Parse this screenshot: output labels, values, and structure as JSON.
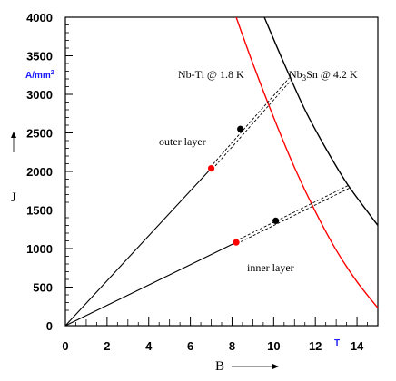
{
  "chart_data": {
    "type": "line",
    "xlabel": "B",
    "ylabel": "J",
    "x_unit": "T",
    "y_unit": "A/mm",
    "y_unit_exp": "2",
    "xlim": [
      0,
      15
    ],
    "ylim": [
      0,
      4000
    ],
    "x_ticks": [
      0,
      2,
      4,
      6,
      8,
      10,
      12,
      14
    ],
    "y_ticks": [
      0,
      500,
      1000,
      1500,
      2000,
      2500,
      3000,
      3500,
      4000
    ],
    "grid": false,
    "curves": [
      {
        "label_text": "Nb-Ti @ 1.8 K",
        "color": "#ff0000",
        "points": [
          [
            8.2,
            4000
          ],
          [
            9.0,
            3400
          ],
          [
            10.0,
            2700
          ],
          [
            11.0,
            2050
          ],
          [
            12.0,
            1480
          ],
          [
            13.0,
            980
          ],
          [
            14.0,
            570
          ],
          [
            15.0,
            230
          ]
        ]
      },
      {
        "label_main": "Nb",
        "label_sub": "3",
        "label_rest": "Sn @ 4.2 K",
        "color": "#000000",
        "points": [
          [
            9.55,
            4000
          ],
          [
            10.5,
            3400
          ],
          [
            11.5,
            2800
          ],
          [
            12.5,
            2300
          ],
          [
            13.5,
            1850
          ],
          [
            14.5,
            1480
          ],
          [
            15.0,
            1300
          ]
        ]
      }
    ],
    "load_lines": [
      {
        "name": "outer",
        "label_text": "outer layer",
        "solid_to": [
          7.0,
          2040
        ],
        "dashed_to": [
          10.8,
          3200
        ]
      },
      {
        "name": "inner",
        "label_text": "inner layer",
        "solid_to": [
          8.2,
          1080
        ],
        "dashed_to": [
          13.6,
          1800
        ]
      }
    ],
    "points": [
      {
        "x": 7.0,
        "y": 2040,
        "color": "#ff0000"
      },
      {
        "x": 8.4,
        "y": 2550,
        "color": "#000000"
      },
      {
        "x": 8.2,
        "y": 1080,
        "color": "#ff0000"
      },
      {
        "x": 10.1,
        "y": 1360,
        "color": "#000000"
      }
    ]
  }
}
